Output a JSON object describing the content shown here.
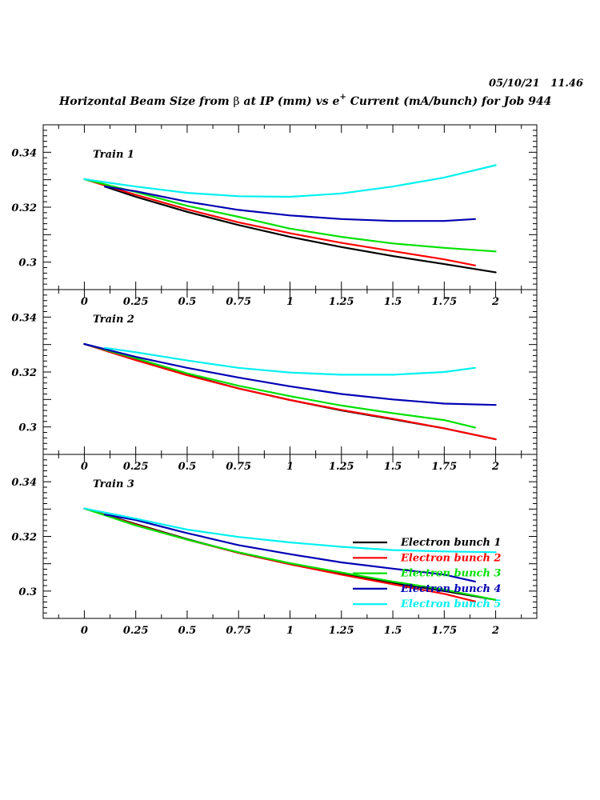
{
  "header": {
    "timestamp": "05/10/21   11.46",
    "title_pre": "Horizontal Beam Size from ",
    "title_beta": "β",
    "title_mid": " at IP (mm) vs e",
    "title_sup": "+",
    "title_post": " Current (mA/bunch) for Job 944"
  },
  "chart_data": [
    {
      "type": "line",
      "label": "Train 1",
      "xlim": [
        -0.2,
        2.2
      ],
      "ylim": [
        0.29,
        0.35
      ],
      "xticks": [
        0,
        0.25,
        0.5,
        0.75,
        1,
        1.25,
        1.5,
        1.75,
        2
      ],
      "xtick_labels": [
        "0",
        "0.25",
        "0.5",
        "0.75",
        "1",
        "1.25",
        "1.5",
        "1.75",
        "2"
      ],
      "yticks": [
        0.3,
        0.32,
        0.34
      ],
      "ytick_labels": [
        "0.3",
        "0.32",
        "0.34"
      ],
      "grid": false,
      "series": [
        {
          "name": "Electron bunch 1",
          "color": "#000000",
          "x": [
            0.1,
            0.25,
            0.5,
            0.75,
            1,
            1.25,
            1.5,
            1.75,
            2
          ],
          "y": [
            0.3275,
            0.3238,
            0.3183,
            0.3135,
            0.3092,
            0.3055,
            0.3022,
            0.2993,
            0.2963
          ]
        },
        {
          "name": "Electron bunch 2",
          "color": "#ff0000",
          "x": [
            0,
            0.25,
            0.5,
            0.75,
            1,
            1.25,
            1.5,
            1.75,
            1.9
          ],
          "y": [
            0.3302,
            0.3245,
            0.3192,
            0.3145,
            0.3105,
            0.307,
            0.304,
            0.301,
            0.2988
          ]
        },
        {
          "name": "Electron bunch 3",
          "color": "#00e000",
          "x": [
            0,
            0.25,
            0.5,
            0.75,
            1,
            1.25,
            1.5,
            1.75,
            2
          ],
          "y": [
            0.3302,
            0.3255,
            0.3205,
            0.3165,
            0.3122,
            0.3092,
            0.3068,
            0.3052,
            0.3039
          ]
        },
        {
          "name": "Electron bunch 4",
          "color": "#0000b4",
          "x": [
            0.1,
            0.25,
            0.5,
            0.75,
            1,
            1.25,
            1.5,
            1.75,
            1.9
          ],
          "y": [
            0.3275,
            0.3258,
            0.322,
            0.319,
            0.317,
            0.3157,
            0.315,
            0.315,
            0.3157
          ]
        },
        {
          "name": "Electron bunch 5",
          "color": "#00f0f0",
          "x": [
            0,
            0.25,
            0.5,
            0.75,
            1,
            1.25,
            1.5,
            1.75,
            2
          ],
          "y": [
            0.3302,
            0.3275,
            0.3252,
            0.324,
            0.3238,
            0.325,
            0.3275,
            0.3308,
            0.3353
          ]
        }
      ]
    },
    {
      "type": "line",
      "label": "Train 2",
      "xlim": [
        -0.2,
        2.2
      ],
      "ylim": [
        0.29,
        0.35
      ],
      "xticks": [
        0,
        0.25,
        0.5,
        0.75,
        1,
        1.25,
        1.5,
        1.75,
        2
      ],
      "xtick_labels": [
        "0",
        "0.25",
        "0.5",
        "0.75",
        "1",
        "1.25",
        "1.5",
        "1.75",
        "2"
      ],
      "yticks": [
        0.3,
        0.32,
        0.34
      ],
      "ytick_labels": [
        "0.3",
        "0.32",
        "0.34"
      ],
      "grid": false,
      "series": [
        {
          "name": "Electron bunch 1",
          "color": "#000000",
          "x": [
            0,
            0.25,
            0.5,
            0.75,
            1,
            1.25,
            1.5,
            1.75,
            2
          ],
          "y": [
            0.3302,
            0.3245,
            0.319,
            0.314,
            0.3098,
            0.306,
            0.3028,
            0.2995,
            0.2955
          ]
        },
        {
          "name": "Electron bunch 2",
          "color": "#ff0000",
          "x": [
            0,
            0.25,
            0.5,
            0.75,
            1,
            1.25,
            1.5,
            1.75,
            2
          ],
          "y": [
            0.3302,
            0.3243,
            0.3188,
            0.314,
            0.3098,
            0.3062,
            0.303,
            0.2995,
            0.2955
          ]
        },
        {
          "name": "Electron bunch 3",
          "color": "#00e000",
          "x": [
            0,
            0.25,
            0.5,
            0.75,
            1,
            1.25,
            1.5,
            1.75,
            1.9
          ],
          "y": [
            0.3302,
            0.325,
            0.3195,
            0.315,
            0.3112,
            0.3078,
            0.305,
            0.3025,
            0.2998
          ]
        },
        {
          "name": "Electron bunch 4",
          "color": "#0000b4",
          "x": [
            0,
            0.25,
            0.5,
            0.75,
            1,
            1.25,
            1.5,
            1.75,
            2
          ],
          "y": [
            0.3302,
            0.3255,
            0.3215,
            0.318,
            0.3148,
            0.312,
            0.31,
            0.3085,
            0.308
          ]
        },
        {
          "name": "Electron bunch 5",
          "color": "#00f0f0",
          "x": [
            0.1,
            0.25,
            0.5,
            0.75,
            1,
            1.25,
            1.5,
            1.75,
            1.9
          ],
          "y": [
            0.3288,
            0.3272,
            0.3242,
            0.3215,
            0.3198,
            0.319,
            0.319,
            0.32,
            0.3215
          ]
        }
      ]
    },
    {
      "type": "line",
      "label": "Train 3",
      "xlim": [
        -0.2,
        2.2
      ],
      "ylim": [
        0.29,
        0.35
      ],
      "xticks": [
        0,
        0.25,
        0.5,
        0.75,
        1,
        1.25,
        1.5,
        1.75,
        2
      ],
      "xtick_labels": [
        "0",
        "0.25",
        "0.5",
        "0.75",
        "1",
        "1.25",
        "1.5",
        "1.75",
        "2"
      ],
      "yticks": [
        0.3,
        0.32,
        0.34
      ],
      "ytick_labels": [
        "0.3",
        "0.32",
        "0.34"
      ],
      "grid": false,
      "legend": "bottom-right",
      "series": [
        {
          "name": "Electron bunch 1",
          "color": "#000000",
          "x": [
            0,
            0.25,
            0.5,
            0.75,
            1,
            1.25,
            1.5,
            1.75,
            2
          ],
          "y": [
            0.3302,
            0.3245,
            0.319,
            0.314,
            0.3098,
            0.3062,
            0.303,
            0.3,
            0.2968
          ]
        },
        {
          "name": "Electron bunch 2",
          "color": "#ff0000",
          "x": [
            0,
            0.25,
            0.5,
            0.75,
            1,
            1.25,
            1.5,
            1.75,
            1.9
          ],
          "y": [
            0.3302,
            0.3243,
            0.3188,
            0.314,
            0.3098,
            0.306,
            0.3025,
            0.299,
            0.2962
          ]
        },
        {
          "name": "Electron bunch 3",
          "color": "#00e000",
          "x": [
            0,
            0.25,
            0.5,
            0.75,
            1,
            1.25,
            1.5,
            1.75,
            2
          ],
          "y": [
            0.3302,
            0.324,
            0.3188,
            0.3142,
            0.3102,
            0.3068,
            0.3035,
            0.3005,
            0.2968
          ]
        },
        {
          "name": "Electron bunch 4",
          "color": "#0000b4",
          "x": [
            0.1,
            0.25,
            0.5,
            0.75,
            1,
            1.25,
            1.5,
            1.75,
            1.9
          ],
          "y": [
            0.328,
            0.326,
            0.3212,
            0.3168,
            0.3135,
            0.3105,
            0.3082,
            0.306,
            0.3035
          ]
        },
        {
          "name": "Electron bunch 5",
          "color": "#00f0f0",
          "x": [
            0,
            0.25,
            0.5,
            0.75,
            1,
            1.25,
            1.5,
            1.75,
            2
          ],
          "y": [
            0.3302,
            0.3265,
            0.3225,
            0.3198,
            0.3178,
            0.3162,
            0.315,
            0.3145,
            0.3142
          ]
        }
      ]
    }
  ]
}
